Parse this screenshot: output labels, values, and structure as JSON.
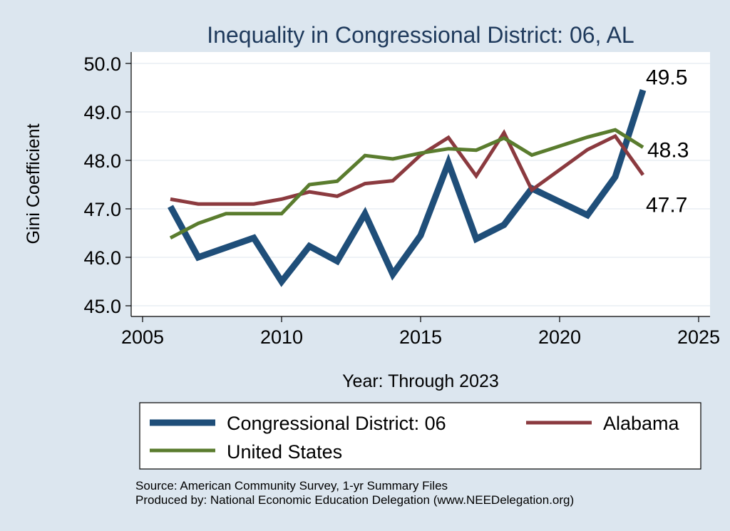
{
  "chart_data": {
    "type": "line",
    "title": "Inequality in Congressional District:  06, AL",
    "xlabel": "Year: Through 2023",
    "ylabel": "Gini Coefficient",
    "xlim": [
      2005,
      2025
    ],
    "ylim": [
      45.0,
      50.0
    ],
    "x_ticks": [
      "2005",
      "2010",
      "2015",
      "2020",
      "2025"
    ],
    "y_ticks": [
      "45.0",
      "46.0",
      "47.0",
      "48.0",
      "49.0",
      "50.0"
    ],
    "grid": true,
    "legend_position": "bottom",
    "series": [
      {
        "name": "Congressional District:  06",
        "color": "#1f4e79",
        "x": [
          2006,
          2007,
          2008,
          2009,
          2010,
          2011,
          2012,
          2013,
          2014,
          2015,
          2016,
          2017,
          2018,
          2019,
          2021,
          2022,
          2023
        ],
        "y": [
          47.05,
          46.0,
          46.2,
          46.4,
          45.5,
          46.23,
          45.92,
          46.9,
          45.65,
          46.45,
          47.95,
          46.38,
          46.67,
          47.42,
          46.87,
          47.66,
          49.45
        ],
        "end_label": "49.5"
      },
      {
        "name": "Alabama",
        "color": "#8b3a3f",
        "x": [
          2006,
          2007,
          2008,
          2009,
          2010,
          2011,
          2012,
          2013,
          2014,
          2015,
          2016,
          2017,
          2018,
          2019,
          2021,
          2022,
          2023
        ],
        "y": [
          47.2,
          47.1,
          47.1,
          47.1,
          47.2,
          47.35,
          47.26,
          47.52,
          47.58,
          48.11,
          48.47,
          47.68,
          48.57,
          47.39,
          48.22,
          48.5,
          47.7
        ],
        "end_label": "47.7"
      },
      {
        "name": "United States",
        "color": "#5a7c2e",
        "x": [
          2006,
          2007,
          2008,
          2009,
          2010,
          2011,
          2012,
          2013,
          2014,
          2015,
          2016,
          2017,
          2018,
          2019,
          2021,
          2022,
          2023
        ],
        "y": [
          46.4,
          46.7,
          46.9,
          46.9,
          46.9,
          47.5,
          47.57,
          48.1,
          48.03,
          48.15,
          48.24,
          48.21,
          48.46,
          48.11,
          48.48,
          48.63,
          48.27
        ],
        "end_label": "48.3"
      }
    ]
  },
  "source": {
    "line1": "Source: American Community Survey, 1-yr Summary Files",
    "line2": "Produced by: National Economic Education Delegation (www.NEEDelegation.org)"
  }
}
